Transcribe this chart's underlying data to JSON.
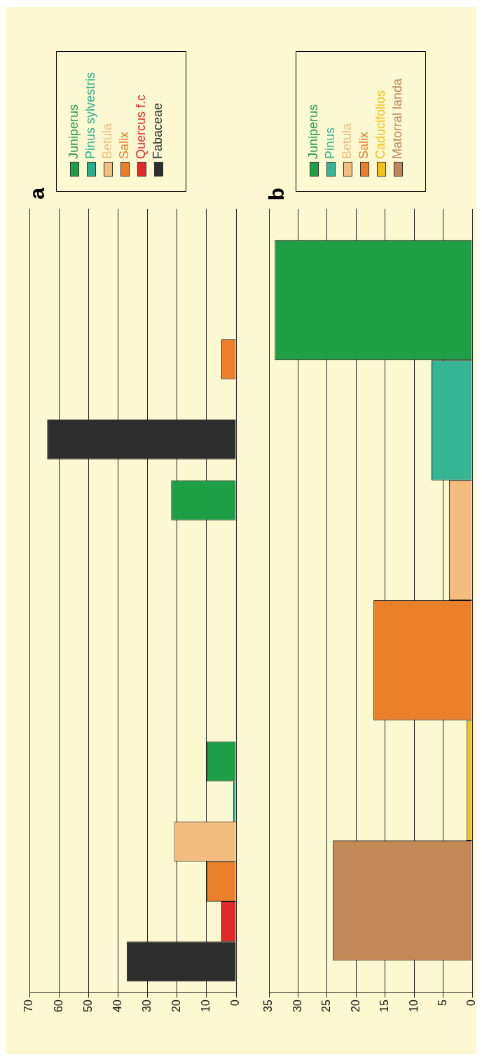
{
  "chart_data": [
    {
      "type": "bar",
      "title": "a",
      "orientation": "horizontal",
      "categories": [
        null,
        null,
        null
      ],
      "xlim": [
        70,
        0
      ],
      "xticks": [
        0,
        10,
        20,
        30,
        40,
        50,
        60,
        70
      ],
      "grid": "x",
      "legend": "top",
      "tick_labels": "x",
      "series": [
        {
          "name": "Juniperus",
          "color": "#1f9e48",
          "values": [
            null,
            22,
            10
          ]
        },
        {
          "name": "Pinus sylvestris",
          "color": "#2bb08f",
          "values": [
            null,
            null,
            1
          ]
        },
        {
          "name": "Betula",
          "color": "#f2bd7e",
          "values": [
            null,
            null,
            21
          ]
        },
        {
          "name": "Salix",
          "color": "#ec7f2a",
          "values": [
            5,
            null,
            10
          ]
        },
        {
          "name": "Quercus f.c",
          "color": "#e02a2a",
          "values": [
            null,
            null,
            5
          ]
        },
        {
          "name": "Fabaceae",
          "color": "#2d2d2d",
          "values": [
            64,
            null,
            37
          ]
        }
      ]
    },
    {
      "type": "bar",
      "title": "b",
      "orientation": "horizontal",
      "categories": [
        null
      ],
      "xlim": [
        35,
        0
      ],
      "xticks": [
        0,
        5,
        10,
        15,
        20,
        25,
        30,
        35
      ],
      "grid": "x",
      "legend": "top",
      "tick_labels": "x",
      "series": [
        {
          "name": "Juniperus",
          "color": "#1f9e48",
          "values": [
            34
          ]
        },
        {
          "name": "Pinus",
          "color": "#35b594",
          "values": [
            7
          ]
        },
        {
          "name": "Betula",
          "color": "#f2bd7e",
          "values": [
            4
          ]
        },
        {
          "name": "Salix",
          "color": "#ec7f2a",
          "values": [
            17
          ]
        },
        {
          "name": "Caducifolios",
          "color": "#f2c221",
          "values": [
            1
          ]
        },
        {
          "name": "Matorral landa",
          "color": "#c38858",
          "values": [
            24
          ]
        }
      ]
    }
  ]
}
